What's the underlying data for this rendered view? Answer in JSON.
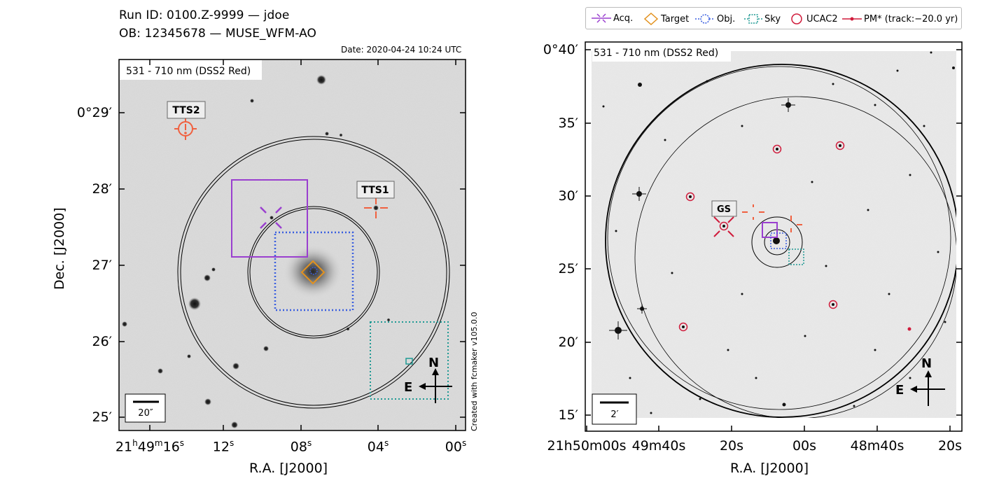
{
  "header": {
    "run_line": "Run ID: 0100.Z-9999 — jdoe",
    "ob_line": "OB: 12345678 — MUSE_WFM-AO",
    "date": "Date: 2020-04-24 10:24 UTC"
  },
  "credit": "Created with fcmaker v105.0.0",
  "left_panel": {
    "band_label": "531 - 710 nm (DSS2 Red)",
    "scale_bar": "20″",
    "x_axis_label": "R.A. [J2000]",
    "y_axis_label": "Dec. [J2000]",
    "x_ticks": [
      "21h49m16s",
      "12s",
      "08s",
      "04s",
      "00s"
    ],
    "x_ticks_display": [
      {
        "main": "21",
        "sup1": "h",
        "mid": "49",
        "sup2": "m",
        "rest": "16",
        "sup3": "s"
      },
      {
        "main": "12",
        "sup1": "s"
      },
      {
        "main": "08",
        "sup1": "s"
      },
      {
        "main": "04",
        "sup1": "s"
      },
      {
        "main": "00",
        "sup1": "s"
      }
    ],
    "y_ticks": [
      "0°29′",
      "28′",
      "27′",
      "26′",
      "25′"
    ],
    "markers": {
      "tts1": "TTS1",
      "tts2": "TTS2"
    }
  },
  "right_panel": {
    "band_label": "531 - 710 nm (DSS2 Red)",
    "scale_bar": "2′",
    "x_axis_label": "R.A. [J2000]",
    "x_ticks": [
      "21h50m00s",
      "49m40s",
      "20s",
      "00s",
      "48m40s",
      "20s"
    ],
    "y_ticks": [
      "0°40′",
      "35′",
      "30′",
      "25′",
      "20′",
      "15′"
    ],
    "markers": {
      "gs": "GS"
    }
  },
  "compass": {
    "north": "N",
    "east": "E"
  },
  "legend": {
    "items": [
      "Acq.",
      "Target",
      "Obj.",
      "Sky",
      "UCAC2",
      "PM* (track:−20.0 yr)"
    ]
  },
  "colors": {
    "acq": "#9a3fcf",
    "target": "#e3921e",
    "obj": "#3a5fe0",
    "sky": "#1f9a94",
    "ucac2": "#d01c3c",
    "tts": "#f0603f",
    "pm": "#d01c3c"
  }
}
